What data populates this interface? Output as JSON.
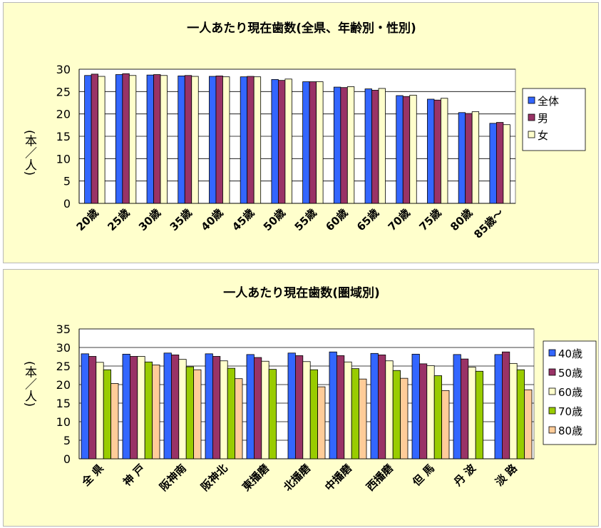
{
  "chart_data": [
    {
      "type": "bar",
      "title": "一人あたり現在歯数(全県、年齢別・性別)",
      "ylabel": "(本／人)",
      "ylim": [
        0,
        30
      ],
      "yticks": [
        0,
        5,
        10,
        15,
        20,
        25,
        30
      ],
      "grid": true,
      "legend_position": "right",
      "categories": [
        "20歳",
        "25歳",
        "30歳",
        "35歳",
        "40歳",
        "45歳",
        "50歳",
        "55歳",
        "60歳",
        "65歳",
        "70歳",
        "75歳",
        "80歳",
        "85歳～"
      ],
      "series": [
        {
          "name": "全体",
          "color": "#3366ff",
          "values": [
            28.6,
            28.8,
            28.7,
            28.5,
            28.4,
            28.3,
            27.7,
            27.2,
            26.0,
            25.6,
            24.1,
            23.3,
            20.3,
            17.9
          ]
        },
        {
          "name": "男",
          "color": "#993366",
          "values": [
            28.9,
            29.0,
            28.8,
            28.6,
            28.5,
            28.4,
            27.5,
            27.2,
            25.9,
            25.3,
            23.9,
            23.1,
            20.1,
            18.1
          ]
        },
        {
          "name": "女",
          "color": "#ffffcc",
          "values": [
            28.4,
            28.6,
            28.6,
            28.4,
            28.3,
            28.3,
            27.8,
            27.2,
            26.1,
            25.7,
            24.2,
            23.5,
            20.5,
            17.6
          ]
        }
      ]
    },
    {
      "type": "bar",
      "title": "一人あたり現在歯数(圏域別)",
      "ylabel": "(本／人)",
      "ylim": [
        0,
        35
      ],
      "yticks": [
        0,
        5,
        10,
        15,
        20,
        25,
        30,
        35
      ],
      "grid": true,
      "legend_position": "right",
      "categories": [
        "全 県",
        "神 戸",
        "阪神南",
        "阪神北",
        "東播磨",
        "北播磨",
        "中播磨",
        "西播磨",
        "但 馬",
        "丹 波",
        "淡 路"
      ],
      "series": [
        {
          "name": "40歳",
          "color": "#3366ff",
          "values": [
            28.3,
            28.2,
            28.5,
            28.3,
            28.1,
            28.5,
            28.8,
            28.4,
            28.2,
            28.1,
            28.1
          ]
        },
        {
          "name": "50歳",
          "color": "#993366",
          "values": [
            27.6,
            27.6,
            28.0,
            27.6,
            27.3,
            27.8,
            27.8,
            28.0,
            25.6,
            26.9,
            28.8
          ]
        },
        {
          "name": "60歳",
          "color": "#ffffcc",
          "values": [
            26.0,
            27.6,
            26.8,
            26.4,
            26.3,
            26.2,
            26.1,
            26.4,
            25.1,
            24.7,
            25.7
          ]
        },
        {
          "name": "70歳",
          "color": "#99cc00",
          "values": [
            24.0,
            26.1,
            24.8,
            24.4,
            24.1,
            24.0,
            24.3,
            23.8,
            22.4,
            23.6,
            24.0
          ]
        },
        {
          "name": "80歳",
          "color": "#ffcc99",
          "values": [
            20.3,
            25.3,
            24.0,
            21.6,
            null,
            19.4,
            21.5,
            21.7,
            18.4,
            null,
            18.6
          ]
        }
      ]
    }
  ]
}
